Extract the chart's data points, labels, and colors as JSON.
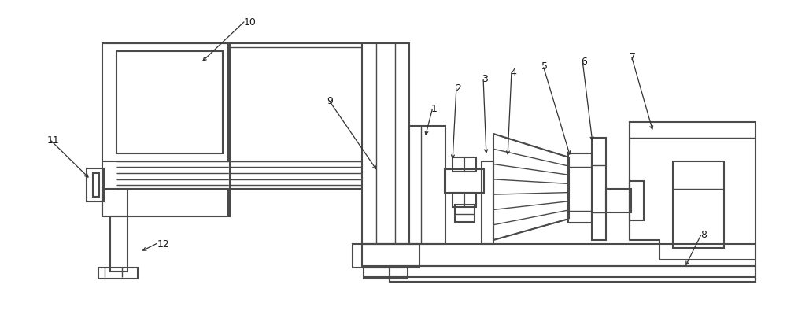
{
  "bg_color": "#ffffff",
  "lc": "#4a4a4a",
  "lw": 1.5,
  "lw2": 1.0
}
